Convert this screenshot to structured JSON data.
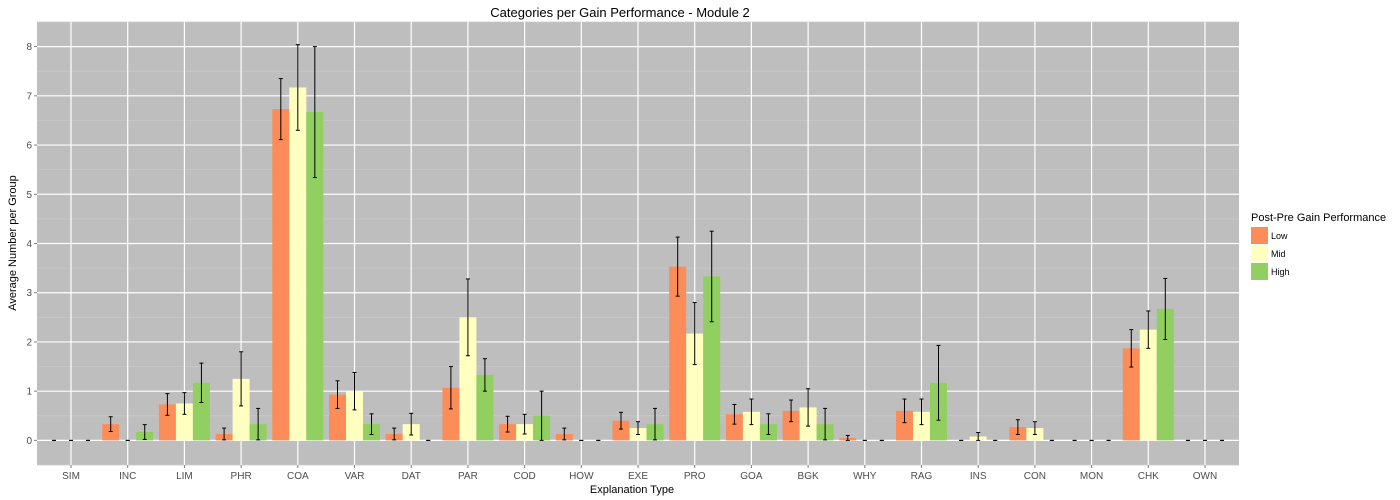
{
  "chart_data": {
    "type": "bar",
    "title": "Categories per Gain Performance - Module 2",
    "xlabel": "Explanation Type",
    "ylabel": "Average Number per Group",
    "ylim": [
      -0.5,
      8.5
    ],
    "yticks": [
      "0",
      "1",
      "2",
      "3",
      "4",
      "5",
      "6",
      "7",
      "8"
    ],
    "grid": true,
    "legend_title": "Post-Pre Gain Performance",
    "legend_position": "right",
    "categories": [
      "SIM",
      "INC",
      "LIM",
      "PHR",
      "COA",
      "VAR",
      "DAT",
      "PAR",
      "COD",
      "HOW",
      "EXE",
      "PRO",
      "GOA",
      "BGK",
      "WHY",
      "RAG",
      "INS",
      "CON",
      "MON",
      "CHK",
      "OWN"
    ],
    "series": [
      {
        "name": "Low",
        "color": "#fc8d59",
        "values": [
          0,
          0.33,
          0.73,
          0.13,
          6.73,
          0.93,
          0.13,
          1.07,
          0.33,
          0.13,
          0.4,
          3.53,
          0.53,
          0.6,
          0.05,
          0.6,
          0,
          0.27,
          0,
          1.87,
          0
        ],
        "errors": [
          0,
          0.15,
          0.22,
          0.12,
          0.62,
          0.28,
          0.12,
          0.43,
          0.16,
          0.12,
          0.17,
          0.6,
          0.2,
          0.22,
          0.05,
          0.24,
          0,
          0.15,
          0,
          0.38,
          0
        ]
      },
      {
        "name": "Mid",
        "color": "#ffffbf",
        "values": [
          0,
          0,
          0.75,
          1.25,
          7.17,
          1,
          0.33,
          2.5,
          0.33,
          0,
          0.25,
          2.17,
          0.58,
          0.67,
          0,
          0.58,
          0.08,
          0.25,
          0,
          2.25,
          0
        ],
        "errors": [
          0,
          0,
          0.22,
          0.55,
          0.87,
          0.38,
          0.22,
          0.78,
          0.2,
          0,
          0.13,
          0.63,
          0.26,
          0.38,
          0,
          0.26,
          0.08,
          0.13,
          0,
          0.38,
          0
        ]
      },
      {
        "name": "High",
        "color": "#91cf60",
        "values": [
          0,
          0.17,
          1.17,
          0.33,
          6.67,
          0.33,
          0,
          1.33,
          0.5,
          0,
          0.33,
          3.33,
          0.33,
          0.33,
          0,
          1.17,
          0,
          0,
          0,
          2.67,
          0
        ],
        "errors": [
          0,
          0.15,
          0.4,
          0.32,
          1.33,
          0.21,
          0,
          0.33,
          0.5,
          0,
          0.32,
          0.92,
          0.21,
          0.32,
          0,
          0.76,
          0,
          0,
          0,
          0.62,
          0
        ]
      }
    ]
  }
}
